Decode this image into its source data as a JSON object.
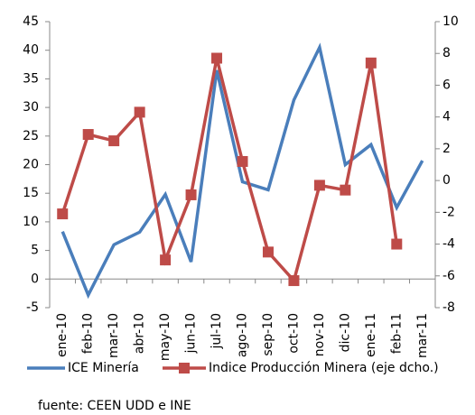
{
  "chart_data": {
    "type": "line",
    "categories": [
      "ene-10",
      "feb-10",
      "mar-10",
      "abr-10",
      "may-10",
      "jun-10",
      "jul-10",
      "ago-10",
      "sep-10",
      "oct-10",
      "nov-10",
      "dic-10",
      "ene-11",
      "feb-11",
      "mar-11"
    ],
    "series": [
      {
        "name": "ICE Minería",
        "color": "#4a7ebb",
        "values": [
          8.3,
          -2.8,
          6,
          8.2,
          14.8,
          3,
          36.5,
          17,
          15.6,
          31.3,
          40.5,
          20,
          23.5,
          12.5,
          20.7
        ]
      },
      {
        "name": "Indice Producción Minera (eje dcho.)",
        "color": "#be4b48",
        "axis": "y2",
        "marker": "square",
        "values": [
          -2.1,
          2.9,
          2.5,
          4.3,
          -5,
          -0.9,
          7.7,
          1.2,
          -4.5,
          -6.3,
          -0.3,
          -0.6,
          7.4,
          -4,
          null
        ]
      }
    ],
    "ylim": [
      -5,
      45
    ],
    "yticks": [
      -5,
      0,
      5,
      10,
      15,
      20,
      25,
      30,
      35,
      40,
      45
    ],
    "y2lim": [
      -8,
      10
    ],
    "y2ticks": [
      -8,
      -6,
      -4,
      -2,
      0,
      2,
      4,
      6,
      8,
      10
    ],
    "grid": false,
    "legend": "bottom",
    "source": "fuente: CEEN UDD e INE"
  }
}
